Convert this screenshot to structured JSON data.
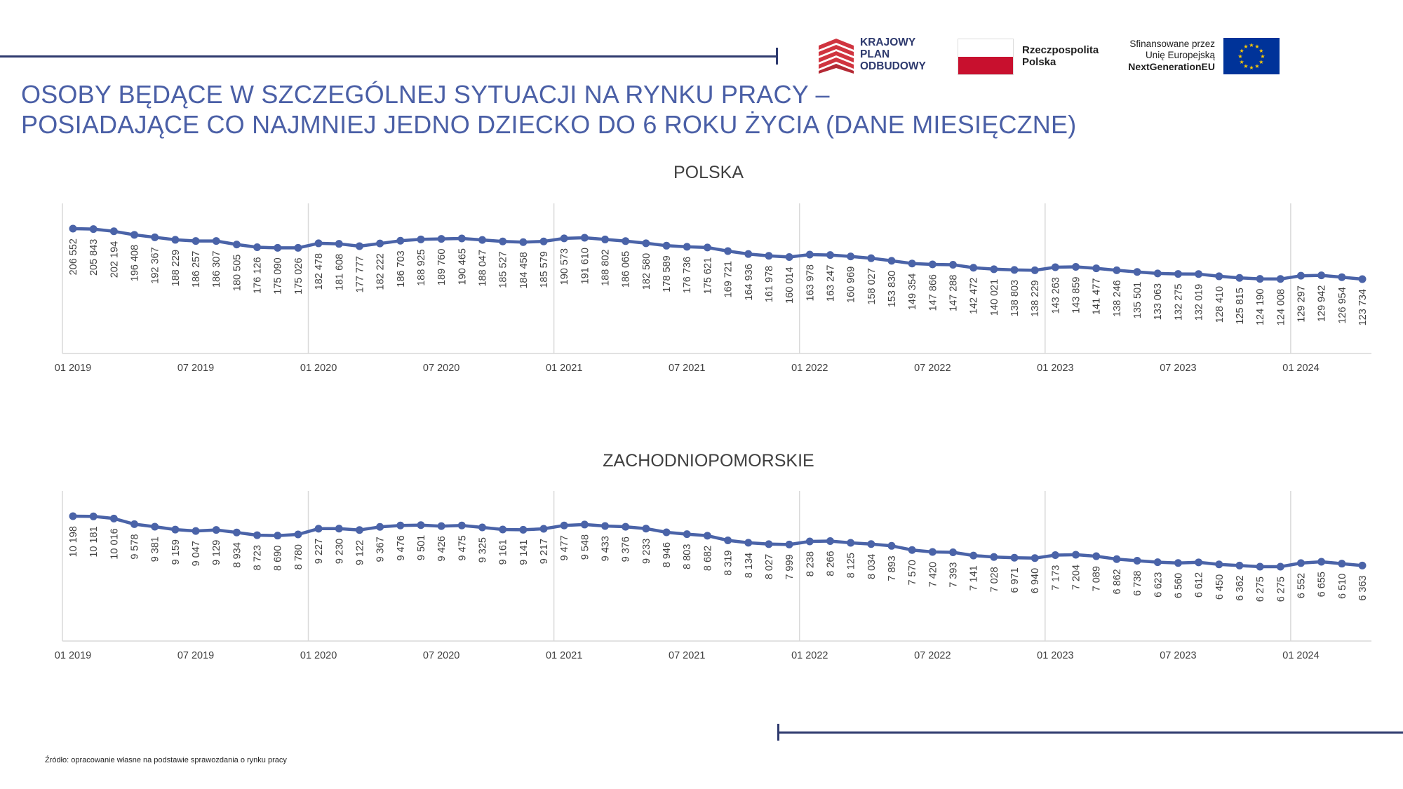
{
  "header": {
    "title_line1": "OSOBY BĘDĄCE W SZCZEGÓLNEJ SYTUACJI NA RYNKU PRACY –",
    "title_line2": "POSIADAJĄCE CO NAJMNIEJ JEDNO DZIECKO DO 6 ROKU ŻYCIA (DANE MIESIĘCZNE)"
  },
  "logos": {
    "kpo": {
      "line1": "KRAJOWY",
      "line2": "PLAN",
      "line3": "ODBUDOWY",
      "icon": "kpo-logo-icon"
    },
    "rp": {
      "line1": "Rzeczpospolita",
      "line2": "Polska",
      "icon": "polish-flag-icon"
    },
    "eu": {
      "line1": "Sfinansowane przez",
      "line2": "Unię Europejską",
      "line3": "NextGenerationEU",
      "icon": "eu-flag-icon"
    }
  },
  "footer": {
    "source": "Źródło: opracowanie własne na podstawie sprawozdania o rynku pracy"
  },
  "colors": {
    "title": "#4a5fa6",
    "series": "#4a63a8",
    "accent_line": "#2e3a6e",
    "kpo_red": "#d0343f"
  },
  "chart_data": [
    {
      "type": "line",
      "title": "POLSKA",
      "x_tick_labels": [
        "01 2019",
        "07 2019",
        "01 2020",
        "07 2020",
        "01 2021",
        "07 2021",
        "01 2022",
        "07 2022",
        "01 2023",
        "07 2023",
        "01 2024"
      ],
      "x_start": "01 2019",
      "x_end": "04 2024",
      "y_axis_visible": false,
      "grid": "vertical lines at each January",
      "data_labels": [
        "206 552",
        "205 843",
        "202 194",
        "196 408",
        "192 367",
        "188 229",
        "186 257",
        "186 307",
        "180 505",
        "176 126",
        "175 090",
        "175 026",
        "182 478",
        "181 608",
        "177 777",
        "182 222",
        "186 703",
        "188 925",
        "189 760",
        "190 465",
        "188 047",
        "185 527",
        "184 458",
        "185 579",
        "190 573",
        "191 610",
        "188 802",
        "186 065",
        "182 580",
        "178 589",
        "176 736",
        "175 621",
        "169 721",
        "164 936",
        "161 978",
        "160 014",
        "163 978",
        "163 247",
        "160 969",
        "158 027",
        "153 830",
        "149 354",
        "147 866",
        "147 288",
        "142 472",
        "140 021",
        "138 803",
        "138 229",
        "143 263",
        "143 859",
        "141 477",
        "138 246",
        "135 501",
        "133 063",
        "132 275",
        "132 019",
        "128 410",
        "125 815",
        "124 190",
        "124 008",
        "129 297",
        "129 942",
        "126 954",
        "123 734"
      ],
      "values": [
        206552,
        205843,
        202194,
        196408,
        192367,
        188229,
        186257,
        186307,
        180505,
        176126,
        175090,
        175026,
        182478,
        181608,
        177777,
        182222,
        186703,
        188925,
        189760,
        190465,
        188047,
        185527,
        184458,
        185579,
        190573,
        191610,
        188802,
        186065,
        182580,
        178589,
        176736,
        175621,
        169721,
        164936,
        161978,
        160014,
        163978,
        163247,
        160969,
        158027,
        153830,
        149354,
        147866,
        147288,
        142472,
        140021,
        138803,
        138229,
        143263,
        143859,
        141477,
        138246,
        135501,
        133063,
        132275,
        132019,
        128410,
        125815,
        124190,
        124008,
        129297,
        129942,
        126954,
        123734
      ]
    },
    {
      "type": "line",
      "title": "ZACHODNIOPOMORSKIE",
      "x_tick_labels": [
        "01 2019",
        "07 2019",
        "01 2020",
        "07 2020",
        "01 2021",
        "07 2021",
        "01 2022",
        "07 2022",
        "01 2023",
        "07 2023",
        "01 2024"
      ],
      "x_start": "01 2019",
      "x_end": "04 2024",
      "y_axis_visible": false,
      "grid": "vertical lines at each January",
      "data_labels": [
        "10 198",
        "10 181",
        "10 016",
        "9 578",
        "9 381",
        "9 159",
        "9 047",
        "9 129",
        "8 934",
        "8 723",
        "8 690",
        "8 780",
        "9 227",
        "9 230",
        "9 122",
        "9 367",
        "9 476",
        "9 501",
        "9 426",
        "9 475",
        "9 325",
        "9 161",
        "9 141",
        "9 217",
        "9 477",
        "9 548",
        "9 433",
        "9 376",
        "9 233",
        "8 946",
        "8 803",
        "8 682",
        "8 319",
        "8 134",
        "8 027",
        "7 999",
        "8 238",
        "8 266",
        "8 125",
        "8 034",
        "7 893",
        "7 570",
        "7 420",
        "7 393",
        "7 141",
        "7 028",
        "6 971",
        "6 940",
        "7 173",
        "7 204",
        "7 089",
        "6 862",
        "6 738",
        "6 623",
        "6 560",
        "6 612",
        "6 450",
        "6 362",
        "6 275",
        "6 275",
        "6 552",
        "6 655",
        "6 510",
        "6 363"
      ],
      "values": [
        10198,
        10181,
        10016,
        9578,
        9381,
        9159,
        9047,
        9129,
        8934,
        8723,
        8690,
        8780,
        9227,
        9230,
        9122,
        9367,
        9476,
        9501,
        9426,
        9475,
        9325,
        9161,
        9141,
        9217,
        9477,
        9548,
        9433,
        9376,
        9233,
        8946,
        8803,
        8682,
        8319,
        8134,
        8027,
        7999,
        8238,
        8266,
        8125,
        8034,
        7893,
        7570,
        7420,
        7393,
        7141,
        7028,
        6971,
        6940,
        7173,
        7204,
        7089,
        6862,
        6738,
        6623,
        6560,
        6612,
        6450,
        6362,
        6275,
        6275,
        6552,
        6655,
        6510,
        6363
      ]
    }
  ]
}
